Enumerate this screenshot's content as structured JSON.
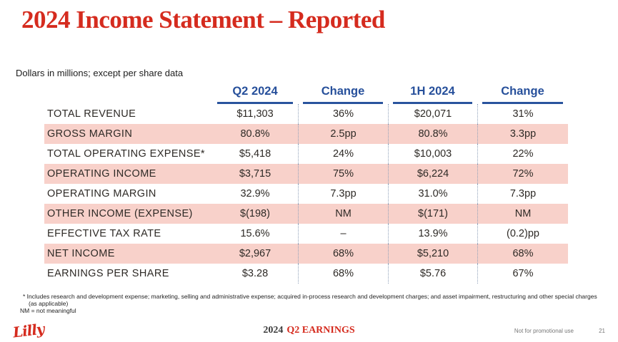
{
  "title": "2024 Income Statement – Reported",
  "subtitle": "Dollars in millions; except per share data",
  "table": {
    "columns": [
      "Q2 2024",
      "Change",
      "1H 2024",
      "Change"
    ],
    "rows": [
      {
        "label": "TOTAL REVENUE",
        "values": [
          "$11,303",
          "36%",
          "$20,071",
          "31%"
        ],
        "highlight": false
      },
      {
        "label": "GROSS MARGIN",
        "values": [
          "80.8%",
          "2.5pp",
          "80.8%",
          "3.3pp"
        ],
        "highlight": true
      },
      {
        "label": "TOTAL OPERATING EXPENSE*",
        "values": [
          "$5,418",
          "24%",
          "$10,003",
          "22%"
        ],
        "highlight": false
      },
      {
        "label": "OPERATING INCOME",
        "values": [
          "$3,715",
          "75%",
          "$6,224",
          "72%"
        ],
        "highlight": true
      },
      {
        "label": "OPERATING MARGIN",
        "values": [
          "32.9%",
          "7.3pp",
          "31.0%",
          "7.3pp"
        ],
        "highlight": false
      },
      {
        "label": "OTHER INCOME (EXPENSE)",
        "values": [
          "$(198)",
          "NM",
          "$(171)",
          "NM"
        ],
        "highlight": true
      },
      {
        "label": "EFFECTIVE TAX RATE",
        "values": [
          "15.6%",
          "–",
          "13.9%",
          "(0.2)pp"
        ],
        "highlight": false
      },
      {
        "label": "NET INCOME",
        "values": [
          "$2,967",
          "68%",
          "$5,210",
          "68%"
        ],
        "highlight": true
      },
      {
        "label": "EARNINGS PER SHARE",
        "values": [
          "$3.28",
          "68%",
          "$5.76",
          "67%"
        ],
        "highlight": false
      }
    ]
  },
  "footnotes": {
    "line1": "* Includes research and development expense; marketing, selling and administrative expense; acquired in-process research and development charges; and asset impairment, restructuring and other special charges",
    "line2": "(as applicable)",
    "line3": "NM = not meaningful"
  },
  "footer": {
    "brand": "Lilly",
    "event_year": "2024",
    "event_name": "Q2 EARNINGS",
    "disclaimer": "Not for promotional use",
    "page_number": "21"
  },
  "colors": {
    "accent_red": "#d52b1e",
    "header_blue": "#27509b",
    "row_highlight_pink": "#f8d1ca",
    "body_text": "#2e2a26"
  }
}
